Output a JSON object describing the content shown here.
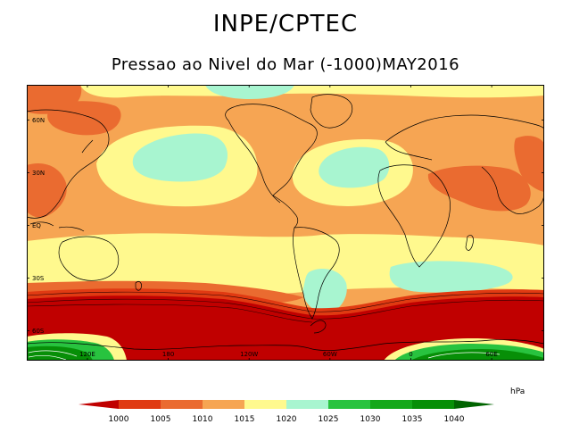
{
  "header": {
    "title": "INPE/CPTEC",
    "subtitle": "Pressao ao Nivel do Mar (-1000)MAY2016"
  },
  "map": {
    "lat_ticks": [
      {
        "label": "60N",
        "lat": 60
      },
      {
        "label": "30N",
        "lat": 30
      },
      {
        "label": "EQ",
        "lat": 0
      },
      {
        "label": "30S",
        "lat": -30
      },
      {
        "label": "60S",
        "lat": -60
      }
    ],
    "lon_ticks": [
      {
        "label": "120E",
        "lon": 120
      },
      {
        "label": "180",
        "lon": 180
      },
      {
        "label": "120W",
        "lon": 240
      },
      {
        "label": "60W",
        "lon": 300
      },
      {
        "label": "0",
        "lon": 360
      },
      {
        "label": "60E",
        "lon": 420
      }
    ]
  },
  "legend": {
    "unit": "hPa",
    "levels": [
      "1000",
      "1005",
      "1010",
      "1015",
      "1020",
      "1025",
      "1030",
      "1035",
      "1040"
    ],
    "colors": {
      "below_1000": "#c00000",
      "1000_1005": "#e03a12",
      "1005_1010": "#ea6b30",
      "1010_1015": "#f6a553",
      "1015_1020": "#fff98e",
      "1020_1025": "#a8f5d0",
      "1025_1030": "#28c33f",
      "1030_1035": "#15a81a",
      "1035_1040": "#078f07",
      "above_1040": "#006400"
    }
  }
}
